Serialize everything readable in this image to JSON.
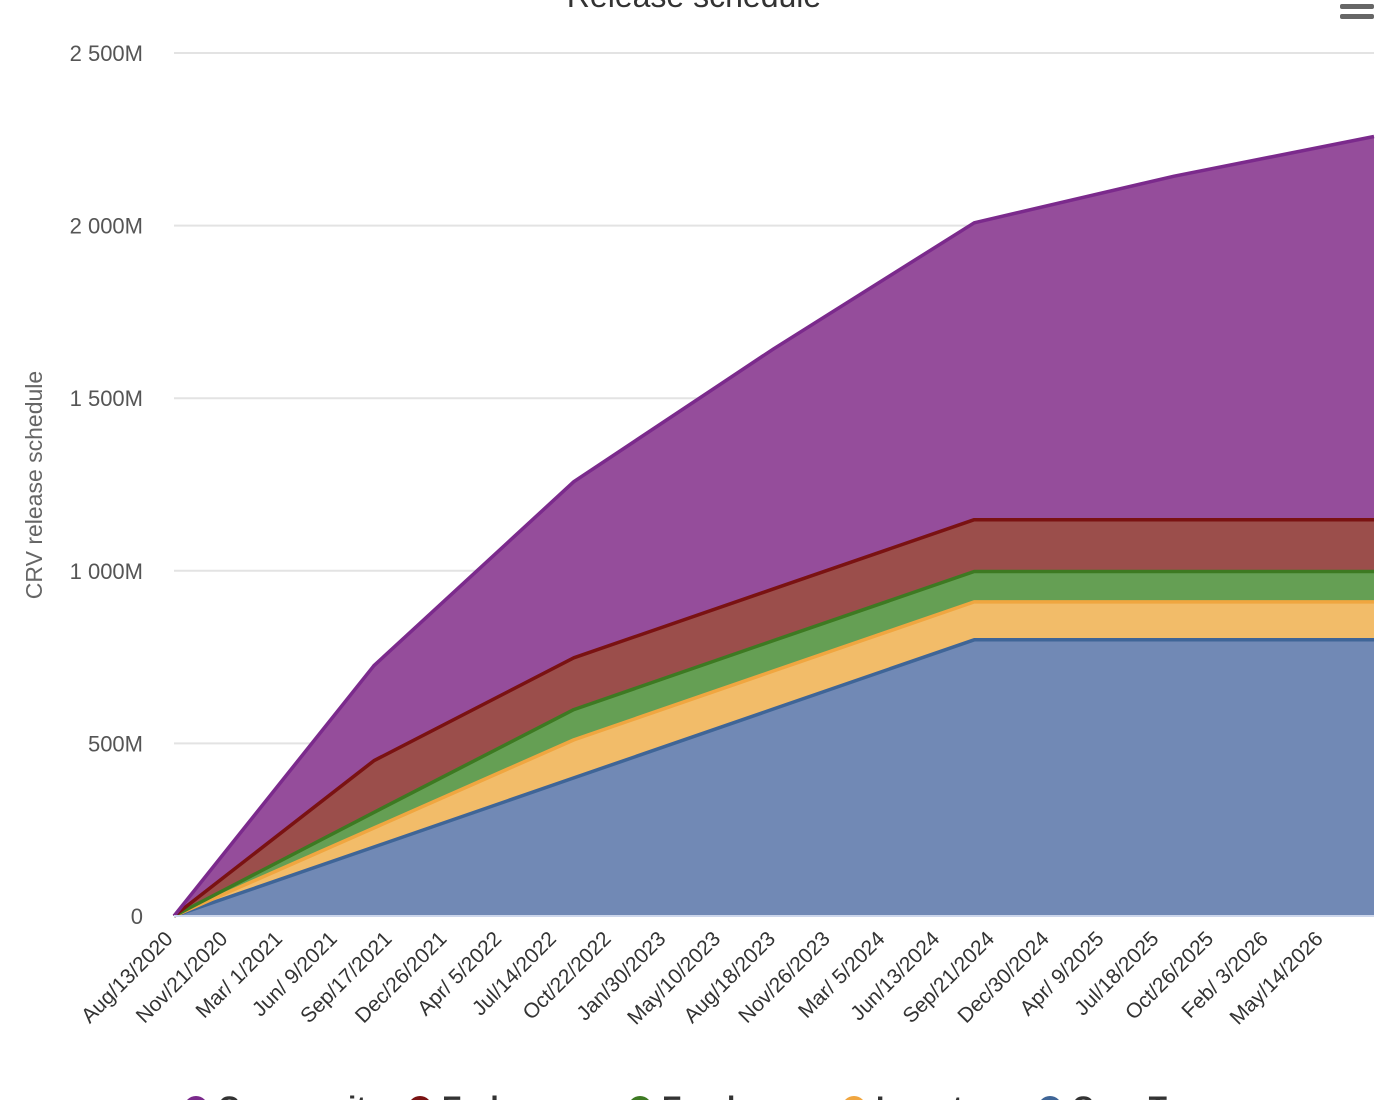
{
  "chart_data": {
    "type": "area",
    "stacked": true,
    "title": "Release schedule",
    "ylabel": "CRV release schedule",
    "ylim": [
      0,
      2500
    ],
    "y_unit_suffix": "M",
    "y_ticks": [
      "0",
      "500M",
      "1 000M",
      "1 500M",
      "2 000M",
      "2 500M"
    ],
    "x_range": [
      "2020-08-13",
      "2026-08-13"
    ],
    "x_tick_labels": [
      "Aug/13/2020",
      "Nov/21/2020",
      "Mar/ 1/2021",
      "Jun/ 9/2021",
      "Sep/17/2021",
      "Dec/26/2021",
      "Apr/ 5/2022",
      "Jul/14/2022",
      "Oct/22/2022",
      "Jan/30/2023",
      "May/10/2023",
      "Aug/18/2023",
      "Nov/26/2023",
      "Mar/ 5/2024",
      "Jun/13/2024",
      "Sep/21/2024",
      "Dec/30/2024",
      "Apr/ 9/2025",
      "Jul/18/2025",
      "Oct/26/2025",
      "Feb/ 3/2026",
      "May/14/2026"
    ],
    "grid": true,
    "legend_position": "bottom",
    "x": [
      "2020-08-13",
      "2021-08-13",
      "2022-08-13",
      "2023-08-13",
      "2024-08-13",
      "2025-08-13",
      "2026-08-13"
    ],
    "series": [
      {
        "name": "Community",
        "color": "#7b2a8c",
        "fill": "#954d9b",
        "values": [
          0,
          275,
          510,
          695,
          860,
          995,
          1110
        ]
      },
      {
        "name": "Early users",
        "color": "#7a1212",
        "fill": "#9b4e4b",
        "values": [
          0,
          150,
          150,
          150,
          150,
          150,
          150
        ]
      },
      {
        "name": "Employees",
        "color": "#3d7a22",
        "fill": "#659f54",
        "values": [
          0,
          45,
          88,
          88,
          88,
          88,
          88
        ]
      },
      {
        "name": "Investors",
        "color": "#f0a640",
        "fill": "#f2bc69",
        "values": [
          0,
          55,
          110,
          110,
          110,
          110,
          110
        ]
      },
      {
        "name": "Core Team",
        "color": "#3f6597",
        "fill": "#7189b5",
        "values": [
          0,
          200,
          400,
          600,
          800,
          800,
          800
        ]
      }
    ]
  }
}
